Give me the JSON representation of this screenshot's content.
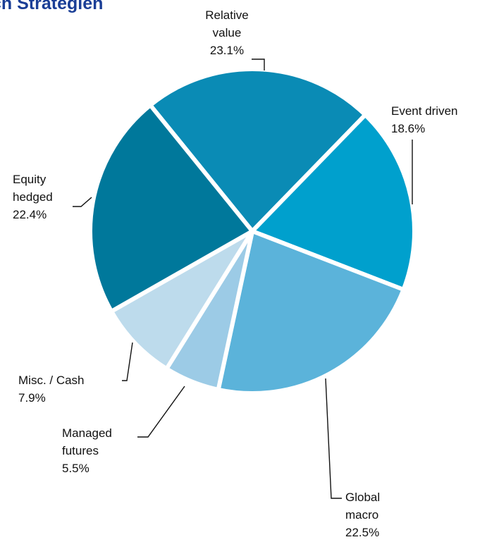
{
  "chart_data": {
    "type": "pie",
    "title": "ch Strategien",
    "categories": [
      "Relative value",
      "Event driven",
      "Global macro",
      "Managed futures",
      "Misc. / Cash",
      "Equity hedged"
    ],
    "values": [
      23.1,
      18.6,
      22.5,
      5.5,
      7.9,
      22.4
    ],
    "value_labels": [
      "23.1%",
      "18.6%",
      "22.5%",
      "5.5%",
      "7.9%",
      "22.4%"
    ],
    "colors": [
      "#0a8bb5",
      "#00a0cd",
      "#5bb3da",
      "#9ccbe6",
      "#bddbec",
      "#00789b"
    ]
  }
}
